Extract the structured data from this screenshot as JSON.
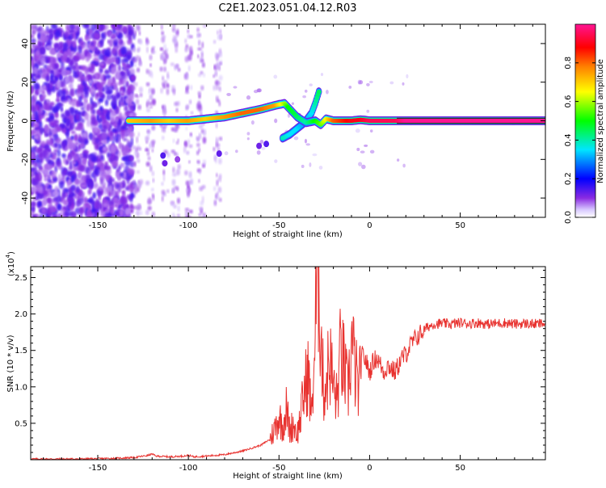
{
  "title": "C2E1.2023.051.04.12.R03",
  "colors": {
    "snr_line": "#e8322f",
    "axis": "#000000",
    "colormap": [
      "#ffffff",
      "#d8c8ff",
      "#8a2be2",
      "#0000ff",
      "#00e5ff",
      "#00ff00",
      "#ffff00",
      "#ff8000",
      "#ff0000",
      "#ff1493"
    ]
  },
  "chart_data": [
    {
      "type": "heatmap",
      "xlabel": "Height of straight line (km)",
      "ylabel": "Frequency (Hz)",
      "xlim": [
        -187,
        97
      ],
      "ylim": [
        -50,
        50
      ],
      "xticks": [
        -150,
        -100,
        -50,
        0,
        50
      ],
      "xtick_labels": [
        "-150",
        "-100",
        "-50",
        "0",
        "50"
      ],
      "yticks": [
        -40,
        -20,
        0,
        20,
        40
      ],
      "ytick_labels": [
        "-40",
        "-20",
        "0",
        "20",
        "40"
      ],
      "colorbar": {
        "label": "Normalized spectral amplitude",
        "range": [
          0,
          1
        ],
        "ticks": [
          0,
          0.2,
          0.4,
          0.6,
          0.8
        ],
        "tick_labels": [
          "0.0",
          "0.2",
          "0.4",
          "0.6",
          "0.8"
        ]
      },
      "main_ridge": {
        "description_note": "strong carrier near 0 Hz",
        "x": [
          -133,
          -120,
          -110,
          -100,
          -90,
          -80,
          -70,
          -60,
          -52,
          -47,
          -45,
          -40,
          -35,
          -30,
          -27,
          -24,
          -20,
          -15,
          -10,
          -5,
          0,
          5,
          10,
          15,
          20,
          40,
          60,
          80,
          97
        ],
        "freq": [
          0,
          0,
          0,
          0,
          1,
          2,
          4,
          6,
          8,
          9,
          7,
          2,
          -1,
          0,
          -2,
          1,
          0,
          0,
          0,
          0.5,
          0,
          0,
          0,
          0,
          0,
          0,
          0,
          0,
          0
        ],
        "amplitude": [
          0.7,
          0.75,
          0.7,
          0.75,
          0.7,
          0.75,
          0.8,
          0.8,
          0.75,
          0.6,
          0.5,
          0.45,
          0.4,
          0.5,
          0.55,
          0.65,
          0.8,
          0.85,
          0.9,
          0.9,
          0.95,
          0.95,
          0.95,
          0.95,
          1.0,
          1.0,
          1.0,
          1.0,
          1.0
        ]
      },
      "branch": {
        "x": [
          -48,
          -44,
          -40,
          -36,
          -32,
          -30,
          -28
        ],
        "freq": [
          -9,
          -7,
          -4,
          -1,
          4,
          9,
          15
        ],
        "amplitude": [
          0.4,
          0.35,
          0.35,
          0.3,
          0.35,
          0.4,
          0.45
        ]
      }
    },
    {
      "type": "line",
      "xlabel": "Height of straight line (km)",
      "ylabel": "SNR (10 * v/v)",
      "y_scale_label": "(x10",
      "y_scale_exponent": "4",
      "y_scale_suffix": ")",
      "xlim": [
        -187,
        97
      ],
      "ylim": [
        0,
        2.65
      ],
      "xticks": [
        -150,
        -100,
        -50,
        0,
        50
      ],
      "xtick_labels": [
        "-150",
        "-100",
        "-50",
        "0",
        "50"
      ],
      "yticks": [
        0.5,
        1.0,
        1.5,
        2.0,
        2.5
      ],
      "ytick_labels": [
        "0.5",
        "1.0",
        "1.5",
        "2.0",
        "2.5"
      ],
      "series": [
        {
          "name": "SNR",
          "x": [
            -187,
            -160,
            -140,
            -130,
            -122,
            -120,
            -118,
            -110,
            -103,
            -100,
            -97,
            -90,
            -80,
            -70,
            -60,
            -55,
            -52,
            -50,
            -48,
            -46,
            -44,
            -42,
            -40,
            -38,
            -36,
            -34,
            -32,
            -30,
            -29,
            -28,
            -27,
            -26,
            -25,
            -24,
            -22,
            -20,
            -18,
            -16,
            -14,
            -12,
            -10,
            -8,
            -6,
            -4,
            -2,
            0,
            2,
            4,
            6,
            8,
            10,
            12,
            14,
            16,
            18,
            20,
            22,
            24,
            26,
            28,
            30,
            32,
            35,
            40,
            45,
            50,
            55,
            60,
            65,
            70,
            75,
            80,
            85,
            90,
            97
          ],
          "values": [
            0.01,
            0.01,
            0.02,
            0.03,
            0.06,
            0.08,
            0.05,
            0.04,
            0.05,
            0.06,
            0.04,
            0.05,
            0.07,
            0.12,
            0.2,
            0.28,
            0.45,
            0.6,
            0.45,
            0.7,
            0.4,
            0.5,
            0.35,
            0.6,
            0.95,
            1.2,
            0.6,
            1.7,
            2.5,
            2.65,
            1.8,
            1.2,
            0.9,
            1.1,
            1.4,
            1.0,
            0.8,
            1.5,
            1.25,
            0.9,
            1.6,
            1.25,
            0.9,
            1.45,
            1.35,
            1.2,
            1.35,
            1.4,
            1.3,
            1.2,
            1.3,
            1.25,
            1.2,
            1.3,
            1.4,
            1.45,
            1.55,
            1.62,
            1.68,
            1.73,
            1.78,
            1.82,
            1.86,
            1.87,
            1.86,
            1.88,
            1.87,
            1.88,
            1.86,
            1.87,
            1.88,
            1.86,
            1.87,
            1.86,
            1.87
          ]
        }
      ]
    }
  ]
}
